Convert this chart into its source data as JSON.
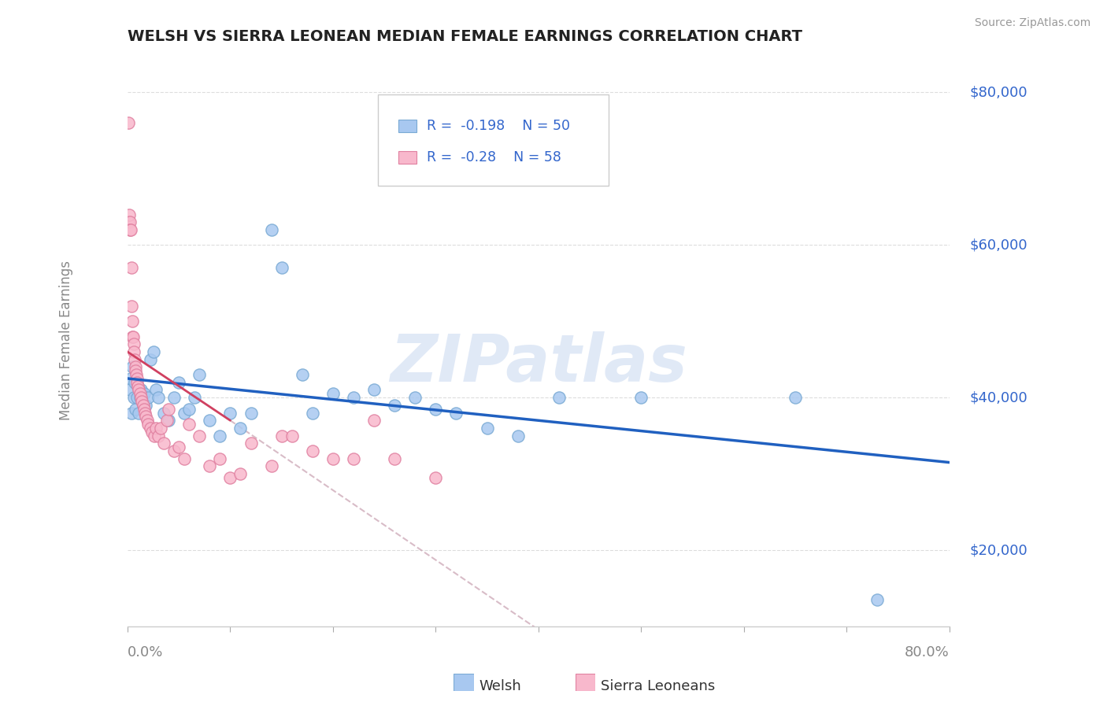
{
  "title": "WELSH VS SIERRA LEONEAN MEDIAN FEMALE EARNINGS CORRELATION CHART",
  "source": "Source: ZipAtlas.com",
  "ylabel": "Median Female Earnings",
  "y_ticks": [
    20000,
    40000,
    60000,
    80000
  ],
  "y_tick_labels": [
    "$20,000",
    "$40,000",
    "$60,000",
    "$80,000"
  ],
  "xlim": [
    0.0,
    80.0
  ],
  "ylim": [
    10000,
    85000
  ],
  "welsh_R": -0.198,
  "welsh_N": 50,
  "sierra_R": -0.28,
  "sierra_N": 58,
  "welsh_color": "#a8c8f0",
  "welsh_edge_color": "#7aaad4",
  "welsh_line_color": "#2060c0",
  "sierra_color": "#f8b8cc",
  "sierra_edge_color": "#e080a0",
  "sierra_line_color": "#d04060",
  "sierra_dash_color": "#c8a0b0",
  "watermark_text": "ZIPatlas",
  "watermark_color": "#c8d8f0",
  "background_color": "#ffffff",
  "legend_box_color": "#f5f5f5",
  "legend_text_color": "#3366cc",
  "grid_color": "#dddddd",
  "ylabel_color": "#888888",
  "ytick_color": "#3366cc",
  "xtick_color": "#888888",
  "welsh_points": [
    [
      0.2,
      41000
    ],
    [
      0.3,
      42500
    ],
    [
      0.4,
      38000
    ],
    [
      0.5,
      44000
    ],
    [
      0.6,
      40000
    ],
    [
      0.7,
      42000
    ],
    [
      0.8,
      38500
    ],
    [
      0.9,
      40000
    ],
    [
      1.0,
      41500
    ],
    [
      1.1,
      38000
    ],
    [
      1.2,
      40000
    ],
    [
      1.3,
      41000
    ],
    [
      1.5,
      39000
    ],
    [
      1.6,
      40500
    ],
    [
      1.8,
      39000
    ],
    [
      2.0,
      40000
    ],
    [
      2.2,
      45000
    ],
    [
      2.5,
      46000
    ],
    [
      2.8,
      41000
    ],
    [
      3.0,
      40000
    ],
    [
      3.5,
      38000
    ],
    [
      4.0,
      37000
    ],
    [
      4.5,
      40000
    ],
    [
      5.0,
      42000
    ],
    [
      5.5,
      38000
    ],
    [
      6.0,
      38500
    ],
    [
      6.5,
      40000
    ],
    [
      7.0,
      43000
    ],
    [
      8.0,
      37000
    ],
    [
      9.0,
      35000
    ],
    [
      10.0,
      38000
    ],
    [
      11.0,
      36000
    ],
    [
      12.0,
      38000
    ],
    [
      14.0,
      62000
    ],
    [
      15.0,
      57000
    ],
    [
      17.0,
      43000
    ],
    [
      18.0,
      38000
    ],
    [
      20.0,
      40500
    ],
    [
      22.0,
      40000
    ],
    [
      24.0,
      41000
    ],
    [
      26.0,
      39000
    ],
    [
      28.0,
      40000
    ],
    [
      30.0,
      38500
    ],
    [
      32.0,
      38000
    ],
    [
      35.0,
      36000
    ],
    [
      38.0,
      35000
    ],
    [
      42.0,
      40000
    ],
    [
      50.0,
      40000
    ],
    [
      65.0,
      40000
    ],
    [
      73.0,
      13500
    ]
  ],
  "sierra_points": [
    [
      0.05,
      76000
    ],
    [
      0.1,
      63000
    ],
    [
      0.15,
      64000
    ],
    [
      0.2,
      63000
    ],
    [
      0.25,
      62000
    ],
    [
      0.3,
      62000
    ],
    [
      0.35,
      57000
    ],
    [
      0.4,
      52000
    ],
    [
      0.45,
      50000
    ],
    [
      0.5,
      48000
    ],
    [
      0.55,
      48000
    ],
    [
      0.6,
      47000
    ],
    [
      0.65,
      46000
    ],
    [
      0.7,
      45000
    ],
    [
      0.75,
      44000
    ],
    [
      0.8,
      43500
    ],
    [
      0.85,
      43000
    ],
    [
      0.9,
      42500
    ],
    [
      0.95,
      42000
    ],
    [
      1.0,
      41500
    ],
    [
      1.1,
      41000
    ],
    [
      1.2,
      40500
    ],
    [
      1.3,
      40000
    ],
    [
      1.4,
      39500
    ],
    [
      1.5,
      39000
    ],
    [
      1.6,
      38500
    ],
    [
      1.7,
      38000
    ],
    [
      1.8,
      37500
    ],
    [
      1.9,
      37000
    ],
    [
      2.0,
      36500
    ],
    [
      2.2,
      36000
    ],
    [
      2.4,
      35500
    ],
    [
      2.6,
      35000
    ],
    [
      2.8,
      36000
    ],
    [
      3.0,
      35000
    ],
    [
      3.2,
      36000
    ],
    [
      3.5,
      34000
    ],
    [
      3.8,
      37000
    ],
    [
      4.0,
      38500
    ],
    [
      4.5,
      33000
    ],
    [
      5.0,
      33500
    ],
    [
      5.5,
      32000
    ],
    [
      6.0,
      36500
    ],
    [
      7.0,
      35000
    ],
    [
      8.0,
      31000
    ],
    [
      9.0,
      32000
    ],
    [
      10.0,
      29500
    ],
    [
      11.0,
      30000
    ],
    [
      12.0,
      34000
    ],
    [
      14.0,
      31000
    ],
    [
      15.0,
      35000
    ],
    [
      16.0,
      35000
    ],
    [
      18.0,
      33000
    ],
    [
      20.0,
      32000
    ],
    [
      22.0,
      32000
    ],
    [
      24.0,
      37000
    ],
    [
      26.0,
      32000
    ],
    [
      30.0,
      29500
    ]
  ]
}
